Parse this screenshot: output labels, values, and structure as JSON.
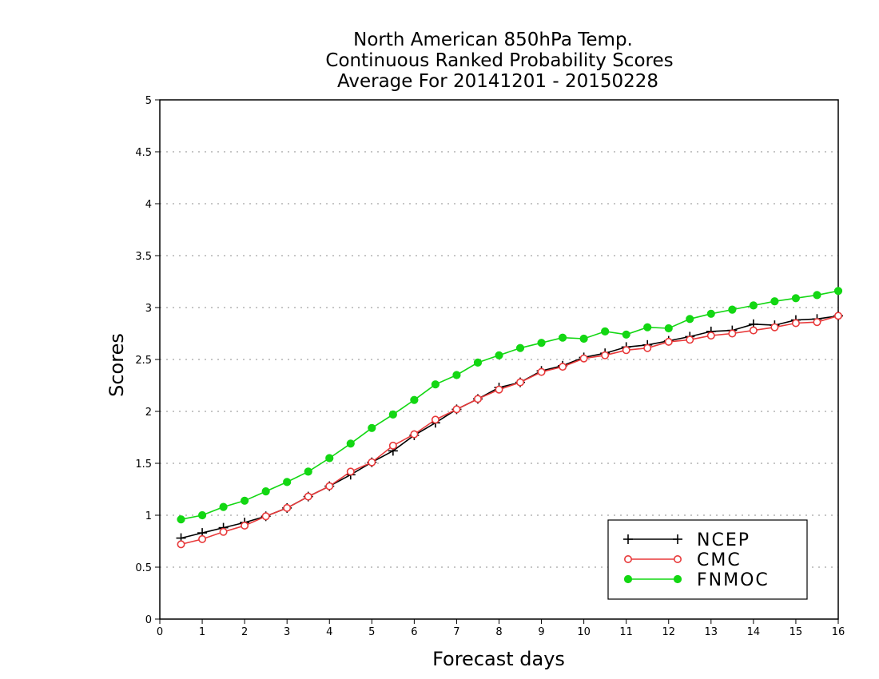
{
  "chart_data": {
    "type": "line",
    "title": [
      "North American 850hPa Temp.",
      "Continuous Ranked Probability Scores",
      "Average For 20141201 - 20150228"
    ],
    "xlabel": "Forecast days",
    "ylabel": "Scores",
    "xlim": [
      0,
      16
    ],
    "ylim": [
      0,
      5
    ],
    "xticks": [
      "0",
      "1",
      "2",
      "3",
      "4",
      "5",
      "6",
      "7",
      "8",
      "9",
      "10",
      "11",
      "12",
      "13",
      "14",
      "15",
      "16"
    ],
    "yticks": [
      "0",
      "0.5",
      "1",
      "1.5",
      "2",
      "2.5",
      "3",
      "3.5",
      "4",
      "4.5",
      "5"
    ],
    "grid": true,
    "legend_position": "bottom-right",
    "x": [
      0.5,
      1,
      1.5,
      2,
      2.5,
      3,
      3.5,
      4,
      4.5,
      5,
      5.5,
      6,
      6.5,
      7,
      7.5,
      8,
      8.5,
      9,
      9.5,
      10,
      10.5,
      11,
      11.5,
      12,
      12.5,
      13,
      13.5,
      14,
      14.5,
      15,
      15.5,
      16
    ],
    "series": [
      {
        "name": "NCEP",
        "color": "#000000",
        "marker": "plus",
        "values": [
          0.78,
          0.83,
          0.88,
          0.93,
          0.99,
          1.07,
          1.18,
          1.28,
          1.39,
          1.51,
          1.62,
          1.77,
          1.89,
          2.02,
          2.12,
          2.23,
          2.28,
          2.39,
          2.44,
          2.52,
          2.56,
          2.62,
          2.64,
          2.68,
          2.72,
          2.77,
          2.78,
          2.84,
          2.83,
          2.88,
          2.89,
          2.92
        ]
      },
      {
        "name": "CMC",
        "color": "#e8393a",
        "marker": "open-circle",
        "values": [
          0.72,
          0.77,
          0.84,
          0.9,
          0.99,
          1.07,
          1.18,
          1.28,
          1.42,
          1.51,
          1.67,
          1.78,
          1.92,
          2.02,
          2.12,
          2.21,
          2.28,
          2.38,
          2.43,
          2.51,
          2.54,
          2.59,
          2.61,
          2.67,
          2.69,
          2.73,
          2.75,
          2.78,
          2.81,
          2.85,
          2.86,
          2.92
        ]
      },
      {
        "name": "FNMOC",
        "color": "#13d713",
        "marker": "filled-circle",
        "values": [
          0.96,
          1.0,
          1.08,
          1.14,
          1.23,
          1.32,
          1.42,
          1.55,
          1.69,
          1.84,
          1.97,
          2.11,
          2.26,
          2.35,
          2.47,
          2.54,
          2.61,
          2.66,
          2.71,
          2.7,
          2.77,
          2.74,
          2.81,
          2.8,
          2.89,
          2.94,
          2.98,
          3.02,
          3.06,
          3.09,
          3.12,
          3.16
        ]
      }
    ]
  }
}
